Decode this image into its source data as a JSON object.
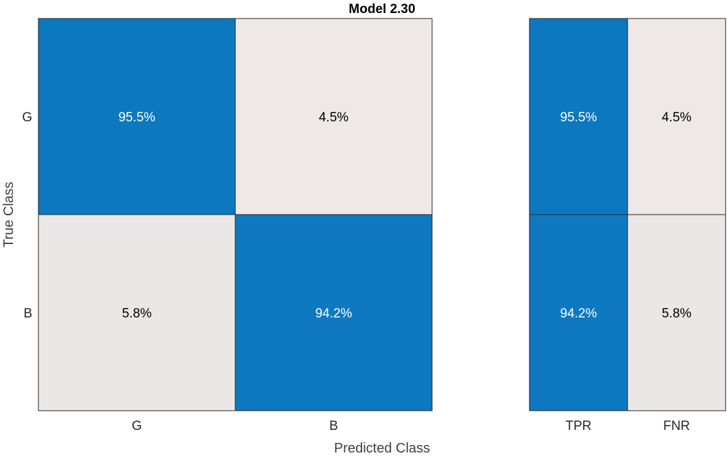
{
  "chart_data": {
    "type": "heatmap",
    "title": "Model 2.30",
    "xlabel": "Predicted Class",
    "ylabel": "True Class",
    "true_classes": [
      "G",
      "B"
    ],
    "predicted_classes": [
      "G",
      "B"
    ],
    "matrix": [
      [
        95.5,
        4.5
      ],
      [
        5.8,
        94.2
      ]
    ],
    "matrix_labels": [
      [
        "95.5%",
        "4.5%"
      ],
      [
        "5.8%",
        "94.2%"
      ]
    ],
    "row_summary": {
      "columns": [
        "TPR",
        "FNR"
      ],
      "values": [
        [
          95.5,
          4.5
        ],
        [
          94.2,
          5.8
        ]
      ],
      "labels": [
        [
          "95.5%",
          "4.5%"
        ],
        [
          "94.2%",
          "5.8%"
        ]
      ]
    },
    "colors": {
      "high": "#0072bd",
      "low": "#f9eee9",
      "text_on_high": "#ffffff",
      "text_on_low": "#000000",
      "border": "#262626"
    }
  }
}
